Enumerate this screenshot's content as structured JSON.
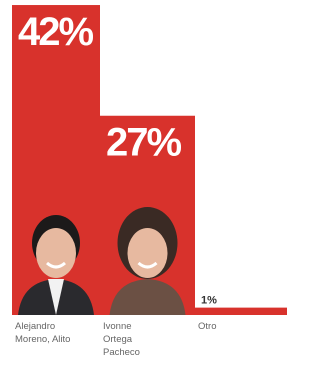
{
  "chart_data": {
    "type": "bar",
    "categories": [
      "Alejandro Moreno, Alito",
      "Ivonne Ortega Pacheco",
      "Otro"
    ],
    "values": [
      42,
      27,
      1
    ],
    "value_labels": [
      "42%",
      "27%",
      "1%"
    ],
    "color": "#d8322c"
  }
}
